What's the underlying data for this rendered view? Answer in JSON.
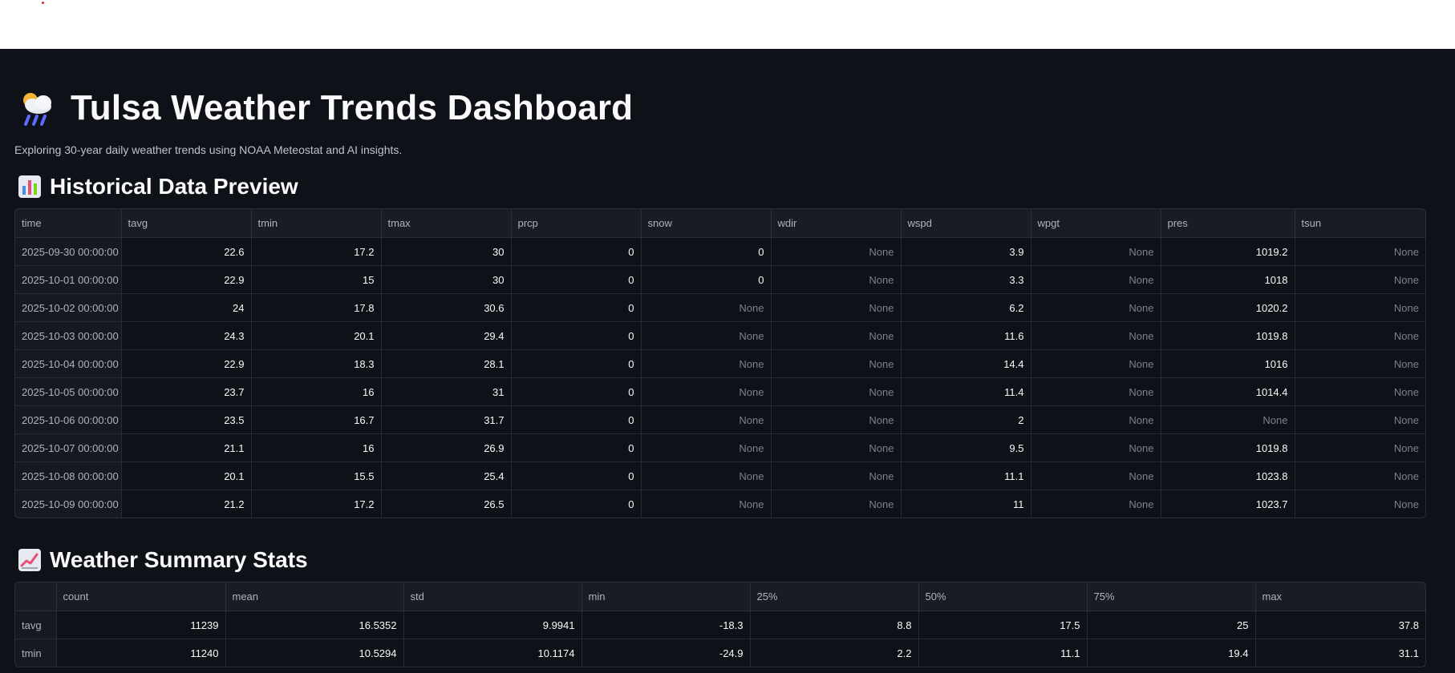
{
  "app": {
    "title": "Tulsa Weather Trends Dashboard",
    "title_icon": "cloud-rain-sun-icon",
    "subtitle": "Exploring 30-year daily weather trends using NOAA Meteostat and AI insights."
  },
  "historical": {
    "title": "Historical Data Preview",
    "icon": "bar-chart-icon",
    "columns": [
      "time",
      "tavg",
      "tmin",
      "tmax",
      "prcp",
      "snow",
      "wdir",
      "wspd",
      "wpgt",
      "pres",
      "tsun"
    ],
    "rows": [
      [
        "2025-09-30 00:00:00",
        "22.6",
        "17.2",
        "30",
        "0",
        "0",
        "None",
        "3.9",
        "None",
        "1019.2",
        "None"
      ],
      [
        "2025-10-01 00:00:00",
        "22.9",
        "15",
        "30",
        "0",
        "0",
        "None",
        "3.3",
        "None",
        "1018",
        "None"
      ],
      [
        "2025-10-02 00:00:00",
        "24",
        "17.8",
        "30.6",
        "0",
        "None",
        "None",
        "6.2",
        "None",
        "1020.2",
        "None"
      ],
      [
        "2025-10-03 00:00:00",
        "24.3",
        "20.1",
        "29.4",
        "0",
        "None",
        "None",
        "11.6",
        "None",
        "1019.8",
        "None"
      ],
      [
        "2025-10-04 00:00:00",
        "22.9",
        "18.3",
        "28.1",
        "0",
        "None",
        "None",
        "14.4",
        "None",
        "1016",
        "None"
      ],
      [
        "2025-10-05 00:00:00",
        "23.7",
        "16",
        "31",
        "0",
        "None",
        "None",
        "11.4",
        "None",
        "1014.4",
        "None"
      ],
      [
        "2025-10-06 00:00:00",
        "23.5",
        "16.7",
        "31.7",
        "0",
        "None",
        "None",
        "2",
        "None",
        "None",
        "None"
      ],
      [
        "2025-10-07 00:00:00",
        "21.1",
        "16",
        "26.9",
        "0",
        "None",
        "None",
        "9.5",
        "None",
        "1019.8",
        "None"
      ],
      [
        "2025-10-08 00:00:00",
        "20.1",
        "15.5",
        "25.4",
        "0",
        "None",
        "None",
        "11.1",
        "None",
        "1023.8",
        "None"
      ],
      [
        "2025-10-09 00:00:00",
        "21.2",
        "17.2",
        "26.5",
        "0",
        "None",
        "None",
        "11",
        "None",
        "1023.7",
        "None"
      ]
    ]
  },
  "summary": {
    "title": "Weather Summary Stats",
    "icon": "line-chart-icon",
    "columns": [
      "",
      "count",
      "mean",
      "std",
      "min",
      "25%",
      "50%",
      "75%",
      "max"
    ],
    "rows": [
      [
        "tavg",
        "11239",
        "16.5352",
        "9.9941",
        "-18.3",
        "8.8",
        "17.5",
        "25",
        "37.8"
      ],
      [
        "tmin",
        "11240",
        "10.5294",
        "10.1174",
        "-24.9",
        "2.2",
        "11.1",
        "19.4",
        "31.1"
      ]
    ]
  }
}
